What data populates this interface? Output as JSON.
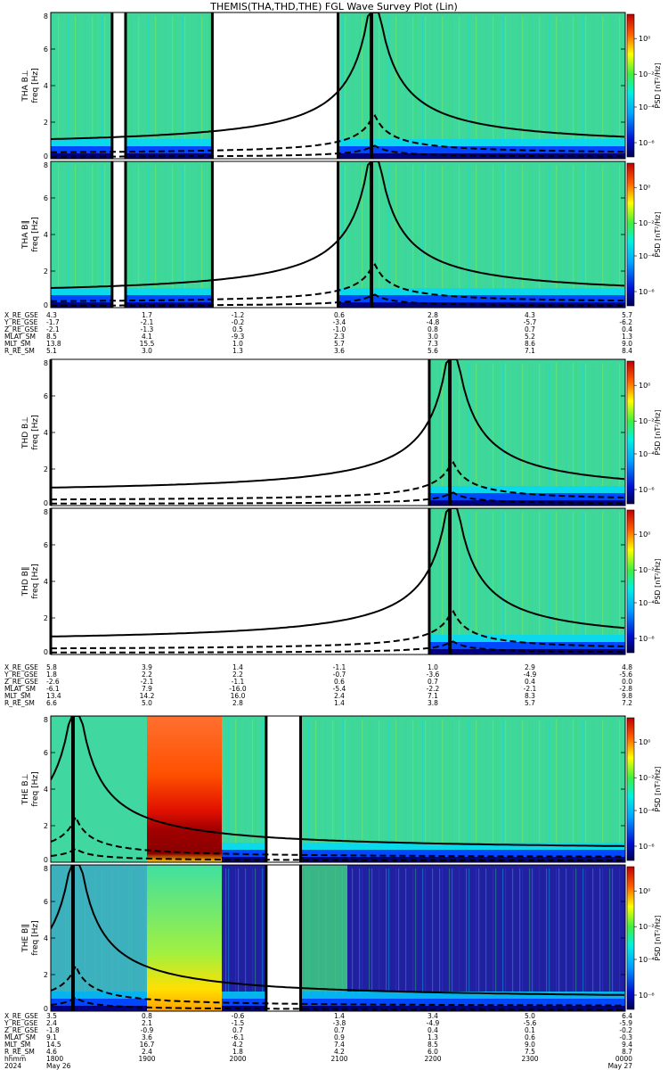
{
  "title": "THEMIS(THA,THD,THE) FGL Wave Survey Plot (Lin)",
  "colors": {
    "dark_blue": "#000080",
    "blue": "#0048ff",
    "cyan": "#00d8ff",
    "green": "#33e060",
    "yellow": "#ffee00",
    "orange": "#ff7a00",
    "red": "#e00000",
    "dark_red": "#800000"
  },
  "colorbar": {
    "label": "PSD [nT²/Hz]",
    "tick_labels": [
      "10⁰",
      "10⁻²",
      "10⁻⁴",
      "10⁻⁶"
    ]
  },
  "chart_data": [
    {
      "type": "heatmap",
      "spacecraft": "THA",
      "panels": [
        {
          "ylabel": "THA B⊥",
          "ylabel2": "freq [Hz]"
        },
        {
          "ylabel": "THA B∥",
          "ylabel2": "freq [Hz]"
        }
      ],
      "yticks": [
        "0",
        "2",
        "4",
        "6",
        "8"
      ],
      "ylim": [
        0,
        8
      ],
      "x_range": [
        "2024-05-26 17:36",
        "2024-05-27 00:00"
      ],
      "data_gaps": [
        [
          "18:17",
          "18:26"
        ],
        [
          "19:24",
          "20:48"
        ]
      ],
      "ephemeris": {
        "labels": [
          "X_RE_GSE",
          "Y_RE_GSE",
          "Z_RE_GSE",
          "MLAT_SM",
          "MLT_SM",
          "R_RE_SM"
        ],
        "columns": [
          [
            "4.3",
            "-1.7",
            "-2.1",
            "8.5",
            "13.8",
            "5.1"
          ],
          [
            "1.7",
            "-2.1",
            "-1.3",
            "4.1",
            "15.5",
            "3.0"
          ],
          [
            "-1.2",
            "-0.2",
            "0.5",
            "-9.3",
            "1.0",
            "1.3"
          ],
          [
            "0.6",
            "-3.4",
            "-1.0",
            "2.3",
            "5.7",
            "3.6"
          ],
          [
            "2.8",
            "-4.8",
            "0.8",
            "3.0",
            "7.3",
            "5.6"
          ],
          [
            "4.3",
            "-5.7",
            "0.7",
            "5.2",
            "8.6",
            "7.1"
          ],
          [
            "5.7",
            "-6.2",
            "0.4",
            "1.3",
            "9.0",
            "8.4"
          ]
        ]
      }
    },
    {
      "type": "heatmap",
      "spacecraft": "THD",
      "panels": [
        {
          "ylabel": "THD B⊥",
          "ylabel2": "freq [Hz]"
        },
        {
          "ylabel": "THD B∥",
          "ylabel2": "freq [Hz]"
        }
      ],
      "yticks": [
        "0",
        "2",
        "4",
        "6",
        "8"
      ],
      "ylim": [
        0,
        8
      ],
      "x_range": [
        "2024-05-26 17:36",
        "2024-05-27 00:00"
      ],
      "data_gaps": [
        [
          "17:36",
          "21:49"
        ]
      ],
      "ephemeris": {
        "labels": [
          "X_RE_GSE",
          "Y_RE_GSE",
          "Z_RE_GSE",
          "MLAT_SM",
          "MLT_SM",
          "R_RE_SM"
        ],
        "columns": [
          [
            "5.8",
            "1.8",
            "-2.6",
            "-6.1",
            "13.4",
            "6.6"
          ],
          [
            "3.9",
            "2.2",
            "-2.1",
            "7.9",
            "14.2",
            "5.0"
          ],
          [
            "1.4",
            "2.2",
            "-1.1",
            "-16.0",
            "16.0",
            "2.8"
          ],
          [
            "-1.1",
            "-0.7",
            "0.6",
            "-5.4",
            "2.4",
            "1.4"
          ],
          [
            "1.0",
            "-3.6",
            "0.7",
            "-2.2",
            "7.1",
            "3.8"
          ],
          [
            "2.9",
            "-4.9",
            "0.4",
            "-2.1",
            "8.3",
            "5.7"
          ],
          [
            "4.8",
            "-5.6",
            "0.0",
            "-2.8",
            "9.8",
            "7.2"
          ]
        ]
      }
    },
    {
      "type": "heatmap",
      "spacecraft": "THE",
      "panels": [
        {
          "ylabel": "THE B⊥",
          "ylabel2": "freq [Hz]"
        },
        {
          "ylabel": "THE B∥",
          "ylabel2": "freq [Hz]"
        }
      ],
      "yticks": [
        "0",
        "2",
        "4",
        "6",
        "8"
      ],
      "ylim": [
        0,
        8
      ],
      "x_range": [
        "2024-05-26 17:36",
        "2024-05-27 00:00"
      ],
      "data_gaps": [
        [
          "20:00",
          "20:23"
        ]
      ],
      "ephemeris": {
        "labels": [
          "X_RE_GSE",
          "Y_RE_GSE",
          "Z_RE_GSE",
          "MLAT_SM",
          "MLT_SM",
          "R_RE_SM"
        ],
        "columns": [
          [
            "3.5",
            "2.4",
            "-1.8",
            "9.1",
            "14.5",
            "4.6"
          ],
          [
            "0.8",
            "2.1",
            "-0.9",
            "3.6",
            "16.7",
            "2.4"
          ],
          [
            "-0.6",
            "-1.5",
            "0.7",
            "-6.1",
            "4.2",
            "1.8"
          ],
          [
            "1.4",
            "-3.8",
            "0.7",
            "0.9",
            "7.4",
            "4.2"
          ],
          [
            "3.4",
            "-4.9",
            "0.4",
            "1.3",
            "8.5",
            "6.0"
          ],
          [
            "5.0",
            "-5.6",
            "0.1",
            "0.6",
            "9.0",
            "7.5"
          ],
          [
            "6.4",
            "-5.9",
            "-0.2",
            "-0.3",
            "9.4",
            "8.7"
          ]
        ]
      },
      "time_axis": {
        "labels": [
          "hhmm",
          "2024"
        ],
        "ticks": [
          "1800",
          "1900",
          "2000",
          "2100",
          "2200",
          "2300",
          "0000"
        ],
        "dates": [
          "May 26",
          "",
          "",
          "",
          "",
          "",
          "May 27"
        ]
      }
    }
  ]
}
